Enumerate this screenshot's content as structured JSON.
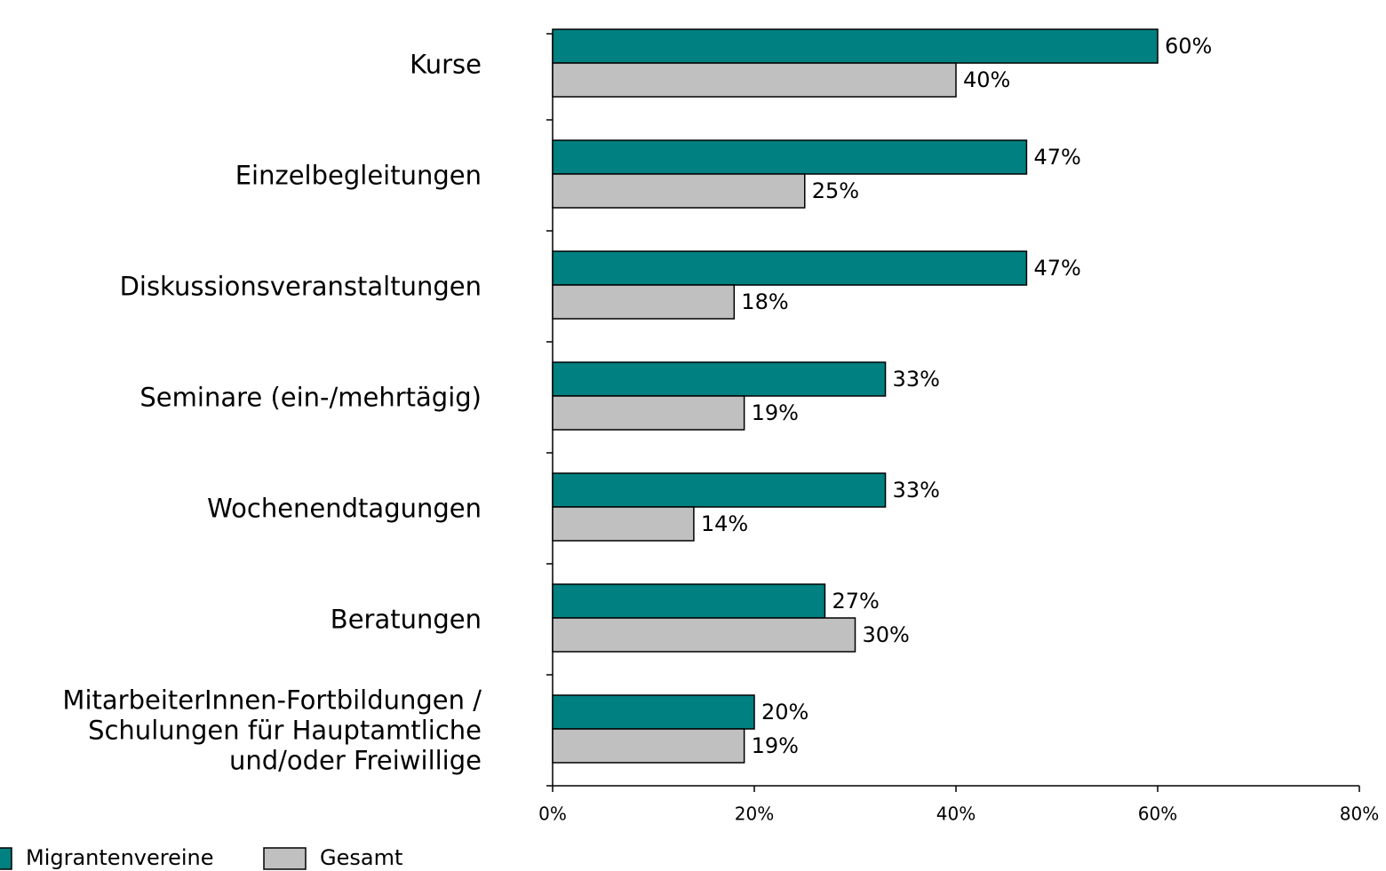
{
  "chart_data": {
    "type": "bar",
    "orientation": "horizontal",
    "categories": [
      "Kurse",
      "Einzelbegleitungen",
      "Diskussionsveranstaltungen",
      "Seminare (ein-/mehrtägig)",
      "Wochenendtagungen",
      "Beratungen",
      "MitarbeiterInnen-Fortbildungen /\nSchulungen für Hauptamtliche\nund/oder Freiwillige"
    ],
    "series": [
      {
        "name": "Migrantenvereine",
        "color": "#008080",
        "values": [
          60,
          47,
          47,
          33,
          33,
          27,
          20
        ],
        "value_labels": [
          "60%",
          "47%",
          "47%",
          "33%",
          "33%",
          "27%",
          "20%"
        ]
      },
      {
        "name": "Gesamt",
        "color": "#c0c0c0",
        "values": [
          40,
          25,
          18,
          19,
          14,
          30,
          19
        ],
        "value_labels": [
          "40%",
          "25%",
          "18%",
          "19%",
          "14%",
          "30%",
          "19%"
        ]
      }
    ],
    "xlim": [
      0,
      80
    ],
    "xticks": [
      {
        "value": 0,
        "label": "0%"
      },
      {
        "value": 20,
        "label": "20%"
      },
      {
        "value": 40,
        "label": "40%"
      },
      {
        "value": 60,
        "label": "60%"
      },
      {
        "value": 80,
        "label": "80%"
      }
    ],
    "grid": false,
    "legend": "bottom-left"
  }
}
